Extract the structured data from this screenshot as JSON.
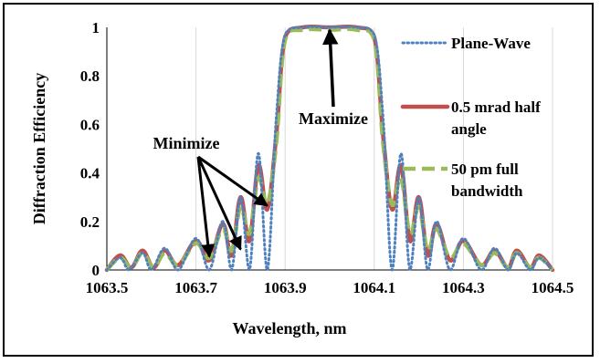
{
  "chart_data": {
    "type": "line",
    "title": "",
    "xlabel": "Wavelength, nm",
    "ylabel": "Diffraction Efficiency",
    "xlim": [
      1063.5,
      1064.5
    ],
    "ylim": [
      0,
      1
    ],
    "x_ticks": [
      "1063.5",
      "1063.7",
      "1063.9",
      "1064.1",
      "1064.3",
      "1064.5"
    ],
    "y_ticks": [
      "0",
      "0.2",
      "0.4",
      "0.6",
      "0.8",
      "1"
    ],
    "grid": "vertical",
    "legend_position": "right",
    "series": [
      {
        "name": "Plane-Wave",
        "style": "dotted",
        "color": "#4f81bd",
        "x": [
          1063.5,
          1063.53,
          1063.55,
          1063.58,
          1063.6,
          1063.63,
          1063.66,
          1063.7,
          1063.73,
          1063.76,
          1063.78,
          1063.8,
          1063.82,
          1063.84,
          1063.86,
          1063.88,
          1063.9,
          1063.94,
          1064.0,
          1064.06,
          1064.1,
          1064.12,
          1064.14,
          1064.16,
          1064.18,
          1064.2,
          1064.22,
          1064.24,
          1064.27,
          1064.3,
          1064.34,
          1064.37,
          1064.4,
          1064.42,
          1064.45,
          1064.47,
          1064.5
        ],
        "y": [
          0,
          0.05,
          0,
          0.07,
          0,
          0.09,
          0,
          0.13,
          0,
          0.2,
          0.0,
          0.3,
          0.0,
          0.48,
          0.0,
          0.62,
          0.97,
          1.0,
          1.0,
          1.0,
          0.97,
          0.62,
          0.0,
          0.48,
          0.0,
          0.3,
          0.0,
          0.2,
          0.0,
          0.13,
          0.0,
          0.09,
          0.0,
          0.07,
          0.0,
          0.05,
          0.0
        ]
      },
      {
        "name": "0.5 mrad half angle",
        "style": "solid",
        "color": "#c0504d",
        "x": [
          1063.5,
          1063.53,
          1063.555,
          1063.58,
          1063.605,
          1063.63,
          1063.66,
          1063.7,
          1063.73,
          1063.76,
          1063.78,
          1063.8,
          1063.82,
          1063.84,
          1063.86,
          1063.88,
          1063.9,
          1063.94,
          1064.0,
          1064.06,
          1064.1,
          1064.12,
          1064.14,
          1064.16,
          1064.18,
          1064.2,
          1064.22,
          1064.24,
          1064.27,
          1064.3,
          1064.34,
          1064.37,
          1064.4,
          1064.42,
          1064.45,
          1064.47,
          1064.5
        ],
        "y": [
          0,
          0.06,
          0.01,
          0.08,
          0.01,
          0.08,
          0.02,
          0.12,
          0.04,
          0.19,
          0.06,
          0.3,
          0.12,
          0.43,
          0.25,
          0.55,
          0.96,
          1.0,
          1.0,
          1.0,
          0.96,
          0.55,
          0.25,
          0.43,
          0.12,
          0.3,
          0.06,
          0.19,
          0.04,
          0.12,
          0.02,
          0.08,
          0.01,
          0.08,
          0.01,
          0.06,
          0.0
        ]
      },
      {
        "name": "50 pm full bandwidth",
        "style": "dashed",
        "color": "#9bbb59",
        "x": [
          1063.5,
          1063.53,
          1063.555,
          1063.58,
          1063.605,
          1063.63,
          1063.66,
          1063.7,
          1063.73,
          1063.76,
          1063.78,
          1063.8,
          1063.82,
          1063.84,
          1063.86,
          1063.88,
          1063.9,
          1063.94,
          1064.0,
          1064.06,
          1064.1,
          1064.12,
          1064.14,
          1064.16,
          1064.18,
          1064.2,
          1064.22,
          1064.24,
          1064.27,
          1064.3,
          1064.34,
          1064.37,
          1064.4,
          1064.42,
          1064.45,
          1064.47,
          1064.5
        ],
        "y": [
          0,
          0.05,
          0.01,
          0.07,
          0.01,
          0.07,
          0.02,
          0.11,
          0.05,
          0.17,
          0.08,
          0.26,
          0.15,
          0.38,
          0.27,
          0.52,
          0.95,
          0.99,
          0.99,
          0.99,
          0.95,
          0.52,
          0.27,
          0.38,
          0.15,
          0.26,
          0.08,
          0.17,
          0.05,
          0.11,
          0.02,
          0.07,
          0.01,
          0.07,
          0.01,
          0.05,
          0.0
        ]
      }
    ],
    "legend": [
      {
        "lines": [
          "Plane-Wave"
        ]
      },
      {
        "lines": [
          "0.5 mrad half",
          "angle"
        ]
      },
      {
        "lines": [
          "50 pm full",
          "bandwidth"
        ]
      }
    ],
    "annotations": [
      {
        "text": "Maximize",
        "arrow_to": [
          1064.0,
          1.0
        ]
      },
      {
        "text": "Minimize",
        "arrows_to": [
          [
            1063.73,
            0.04
          ],
          [
            1063.8,
            0.07
          ],
          [
            1063.86,
            0.25
          ]
        ]
      }
    ]
  }
}
